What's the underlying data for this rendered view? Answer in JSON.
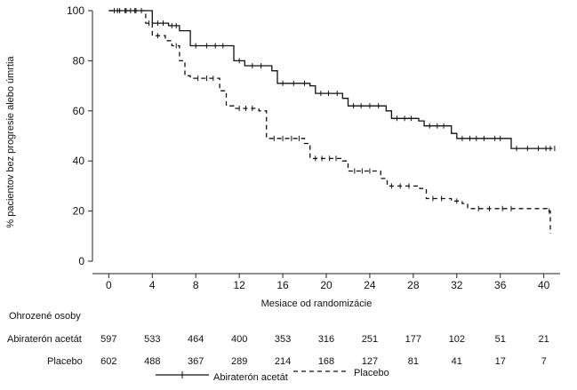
{
  "chart_data": {
    "type": "line",
    "title": "",
    "xlabel": "Mesiace od randomizácie",
    "ylabel": "% pacientov bez progresie alebo úmrtia",
    "xlim": [
      -1.5,
      41.5
    ],
    "ylim": [
      0,
      100
    ],
    "x_ticks": [
      "0",
      "4",
      "8",
      "12",
      "16",
      "20",
      "24",
      "28",
      "32",
      "36",
      "40"
    ],
    "y_ticks": [
      "0",
      "20",
      "40",
      "60",
      "80",
      "100"
    ],
    "series": [
      {
        "name": "Abiraterón acetát",
        "style": "solid",
        "x": [
          0,
          3.2,
          4.0,
          5.5,
          6.5,
          7.5,
          10.8,
          11.5,
          12.5,
          15,
          15.5,
          18.5,
          19,
          21.5,
          22,
          25.5,
          26,
          28.5,
          29,
          31.5,
          32,
          36.5,
          37,
          40.8
        ],
        "y": [
          100,
          100,
          95,
          94,
          92,
          86,
          86,
          80,
          78,
          76,
          71,
          70,
          67,
          65,
          62,
          60,
          57,
          56,
          54,
          51,
          49,
          49,
          45,
          45
        ],
        "censor_x": [
          0.5,
          1.0,
          1.5,
          2.0,
          2.5,
          3.0,
          4.5,
          5.0,
          5.8,
          6.2,
          8.0,
          9.0,
          9.8,
          10.5,
          12.0,
          13.2,
          14.0,
          16.0,
          17.0,
          18.0,
          19.5,
          20.2,
          21.0,
          22.5,
          23.2,
          24.0,
          24.8,
          26.5,
          27.2,
          27.8,
          29.5,
          30.2,
          30.8,
          32.5,
          33.2,
          33.8,
          34.5,
          35.5,
          36.0,
          37.5,
          38.5,
          39.5,
          40.2,
          40.6,
          41.0
        ]
      },
      {
        "name": "Placebo",
        "style": "dashed",
        "x": [
          0,
          2.8,
          3.4,
          4.0,
          5.2,
          5.8,
          6.5,
          7.0,
          7.5,
          10.2,
          10.8,
          11.5,
          13.8,
          14.5,
          18.0,
          18.5,
          21.5,
          22.0,
          25.0,
          25.6,
          28.6,
          29.2,
          31.5,
          32.5,
          33.0,
          40.3,
          40.6
        ],
        "y": [
          100,
          100,
          95,
          90,
          88,
          86,
          80,
          74,
          73,
          68,
          62,
          61,
          60,
          49,
          47,
          41,
          40,
          36,
          33,
          30,
          29,
          25,
          24,
          23,
          21,
          20,
          11
        ],
        "censor_x": [
          0.8,
          1.6,
          2.4,
          3.7,
          4.5,
          6.2,
          8.2,
          9.0,
          9.6,
          12.0,
          12.6,
          13.2,
          15.2,
          16.0,
          16.8,
          17.5,
          19.0,
          19.6,
          20.3,
          20.9,
          22.6,
          23.3,
          24.0,
          26.0,
          26.8,
          27.6,
          29.8,
          30.6,
          32.0,
          34.0,
          35.0,
          36.2,
          37.0,
          40.5
        ]
      }
    ]
  },
  "risk_table": {
    "title": "Ohrozené osoby",
    "rows": [
      {
        "label": "Abiraterón acetát",
        "values": [
          "597",
          "533",
          "464",
          "400",
          "353",
          "316",
          "251",
          "177",
          "102",
          "51",
          "21"
        ]
      },
      {
        "label": "Placebo",
        "values": [
          "602",
          "488",
          "367",
          "289",
          "214",
          "168",
          "127",
          "81",
          "41",
          "17",
          "7"
        ]
      }
    ]
  },
  "legend": {
    "items": [
      {
        "label": "Abiraterón acetát",
        "style": "solid"
      },
      {
        "label": "Placebo",
        "style": "dashed"
      }
    ]
  }
}
